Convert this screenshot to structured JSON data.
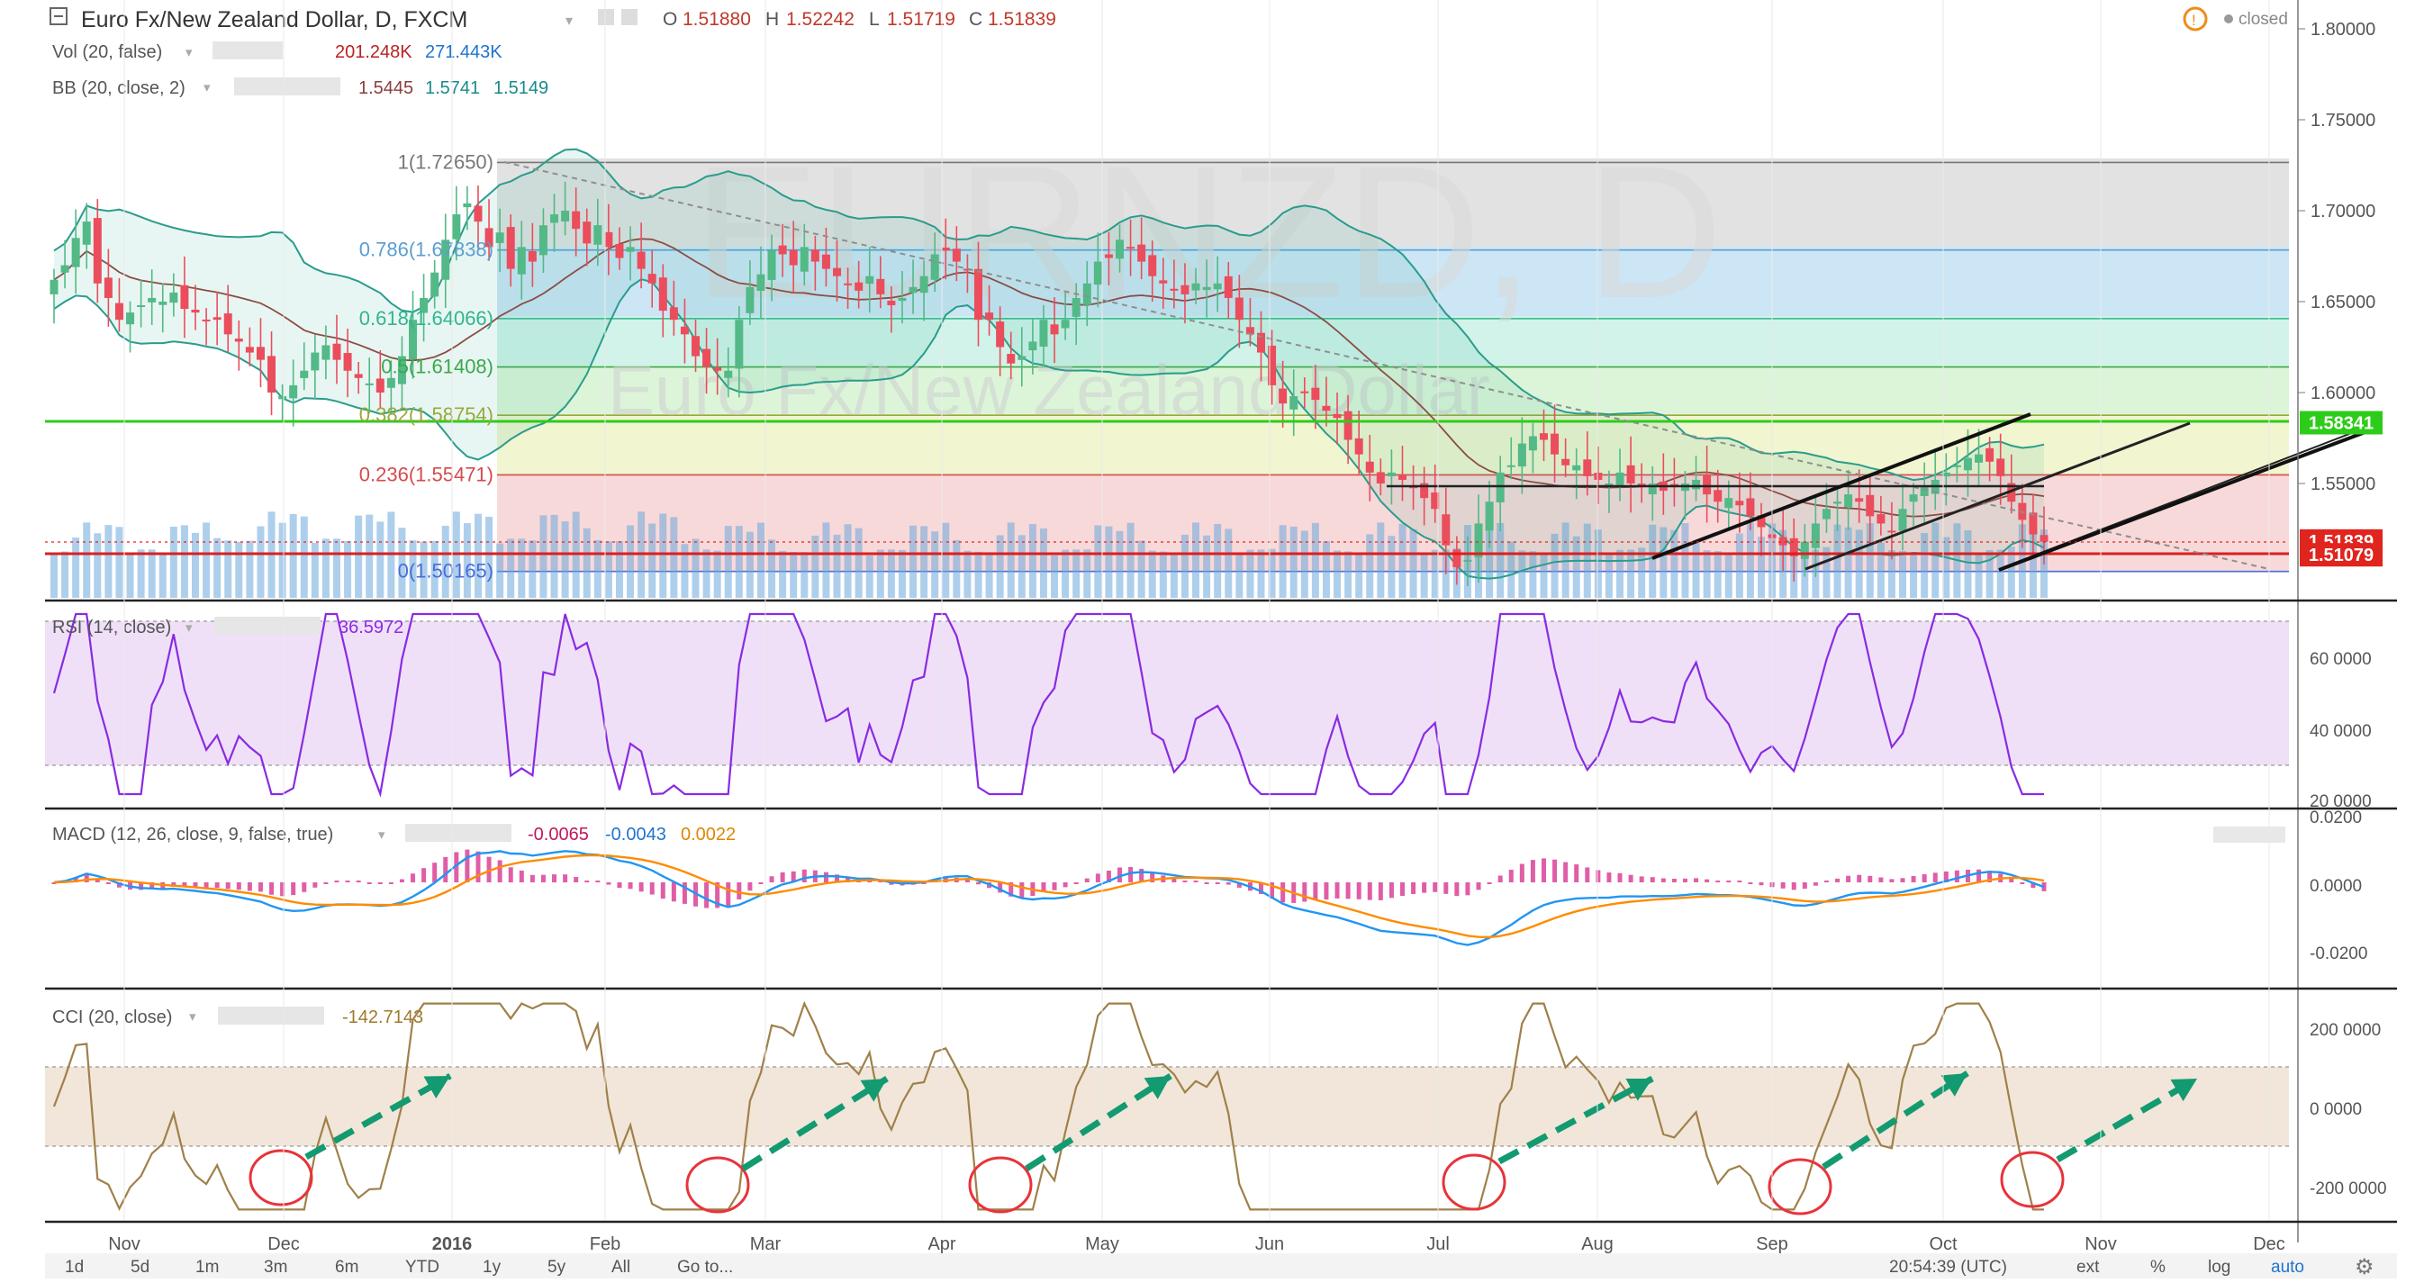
{
  "header": {
    "symbol_title": "Euro Fx/New Zealand Dollar, D, FXCM",
    "ohlc": {
      "o_label": "O",
      "o": "1.51880",
      "h_label": "H",
      "h": "1.52242",
      "l_label": "L",
      "l": "1.51719",
      "c_label": "C",
      "c": "1.51839"
    },
    "market_status": "closed"
  },
  "indicators": {
    "vol": {
      "label": "Vol (20, false)",
      "v1": "201.248K",
      "v2": "271.443K"
    },
    "bb": {
      "label": "BB (20, close, 2)",
      "v1": "1.5445",
      "v2": "1.5741",
      "v3": "1.5149"
    }
  },
  "watermark": {
    "big": "EURNZD, D",
    "sub": "Euro Fx/New Zealand Dollar"
  },
  "fibonacci": [
    {
      "label": "1(1.72650)",
      "value": 1.7265
    },
    {
      "label": "0.786(1.67838)",
      "value": 1.67838
    },
    {
      "label": "0.618(1.64066)",
      "value": 1.64066
    },
    {
      "label": "0.5(1.61408)",
      "value": 1.61408
    },
    {
      "label": "0.382(1.58754)",
      "value": 1.58754
    },
    {
      "label": "0.236(1.55471)",
      "value": 1.55471
    },
    {
      "label": "0(1.50165)",
      "value": 1.50165
    }
  ],
  "price_axis": {
    "ticks": [
      {
        "label": "1.80000",
        "value": 1.8
      },
      {
        "label": "1.75000",
        "value": 1.75
      },
      {
        "label": "1.70000",
        "value": 1.7
      },
      {
        "label": "1.65000",
        "value": 1.65
      },
      {
        "label": "1.60000",
        "value": 1.6
      },
      {
        "label": "1.55000",
        "value": 1.55
      }
    ],
    "badges": [
      {
        "label": "1.58341",
        "value": 1.58341,
        "color": "#2ecc1a"
      },
      {
        "label": "1.51839",
        "value": 1.51839,
        "color": "#e0241e"
      },
      {
        "label": "1.51079",
        "value": 1.51079,
        "color": "#e0241e"
      }
    ]
  },
  "time_axis": {
    "labels": [
      "Nov",
      "Dec",
      "2016",
      "Feb",
      "Mar",
      "Apr",
      "May",
      "Jun",
      "Jul",
      "Aug",
      "Sep",
      "Oct",
      "Nov",
      "Dec"
    ]
  },
  "rsi": {
    "label": "RSI (14, close)",
    "value": "36.5972",
    "ticks": [
      "60 0000",
      "40 0000",
      "20 0000"
    ]
  },
  "macd": {
    "label": "MACD (12, 26, close, 9, false, true)",
    "v1": "-0.0065",
    "v2": "-0.0043",
    "v3": "0.0022",
    "ticks": [
      "0.0200",
      "0.0000",
      "-0.0200"
    ]
  },
  "cci": {
    "label": "CCI (20, close)",
    "value": "-142.7143",
    "ticks": [
      "200 0000",
      "0 0000",
      "-200 0000"
    ]
  },
  "bottom_toolbar": {
    "ranges": [
      "1d",
      "5d",
      "1m",
      "3m",
      "6m",
      "YTD",
      "1y",
      "5y",
      "All"
    ],
    "goto": "Go to...",
    "clock": "20:54:39 (UTC)",
    "ext": "ext",
    "percent": "%",
    "log": "log",
    "auto": "auto"
  },
  "colors": {
    "accent_blue": "#1e74d0",
    "up_candle": "#53b987",
    "down_candle": "#eb4d5c",
    "bb_band": "#2a9c8c",
    "rsi_line": "#8a2be2",
    "macd_line": "#2196f3",
    "signal_line": "#ff8c00",
    "cci_line": "#a0804a",
    "arrow_green": "#139a70",
    "circle_red": "#e8333a"
  },
  "chart_data": {
    "type": "candlestick",
    "symbol": "EURNZD",
    "timeframe": "D",
    "close_series": [
      1.662,
      1.67,
      1.685,
      1.694,
      1.66,
      1.652,
      1.64,
      1.644,
      1.648,
      1.652,
      1.65,
      1.655,
      1.646,
      1.644,
      1.64,
      1.64,
      1.632,
      1.628,
      1.622,
      1.618,
      1.6,
      1.598,
      1.604,
      1.612,
      1.622,
      1.626,
      1.618,
      1.612,
      1.608,
      1.605,
      1.6,
      1.608,
      1.62,
      1.64,
      1.652,
      1.666,
      1.684,
      1.698,
      1.704,
      1.694,
      1.68,
      1.688,
      1.668,
      1.68,
      1.672,
      1.692,
      1.698,
      1.7,
      1.69,
      1.682,
      1.692,
      1.68,
      1.674,
      1.68,
      1.668,
      1.66,
      1.645,
      1.64,
      1.632,
      1.62,
      1.614,
      1.612,
      1.612,
      1.64,
      1.658,
      1.665,
      1.678,
      1.676,
      1.67,
      1.68,
      1.672,
      1.668,
      1.664,
      1.66,
      1.656,
      1.664,
      1.654,
      1.648,
      1.652,
      1.658,
      1.664,
      1.676,
      1.678,
      1.672,
      1.668,
      1.64,
      1.64,
      1.625,
      1.616,
      1.62,
      1.628,
      1.64,
      1.632,
      1.64,
      1.652,
      1.66,
      1.672,
      1.674,
      1.684,
      1.68,
      1.672,
      1.664,
      1.66,
      1.656,
      1.654,
      1.66,
      1.658,
      1.66,
      1.652,
      1.64,
      1.632,
      1.622,
      1.604,
      1.594,
      1.598,
      1.6,
      1.596,
      1.59,
      1.586,
      1.574,
      1.566,
      1.556,
      1.55,
      1.556,
      1.552,
      1.548,
      1.542,
      1.536,
      1.516,
      1.504,
      1.508,
      1.528,
      1.54,
      1.556,
      1.56,
      1.572,
      1.576,
      1.574,
      1.566,
      1.56,
      1.56,
      1.554,
      1.552,
      1.55,
      1.556,
      1.55,
      1.548,
      1.55,
      1.546,
      1.548,
      1.55,
      1.552,
      1.544,
      1.54,
      1.542,
      1.538,
      1.532,
      1.526,
      1.52,
      1.516,
      1.51,
      1.518,
      1.528,
      1.536,
      1.54,
      1.544,
      1.54,
      1.532,
      1.528,
      1.524,
      1.536,
      1.544,
      1.548,
      1.552,
      1.556,
      1.56,
      1.564,
      1.566,
      1.562,
      1.554,
      1.54,
      1.53,
      1.522,
      1.518
    ],
    "rsi_range": [
      20,
      80
    ],
    "macd_range": [
      -0.025,
      0.022
    ],
    "cci_range": [
      -280,
      280
    ]
  }
}
